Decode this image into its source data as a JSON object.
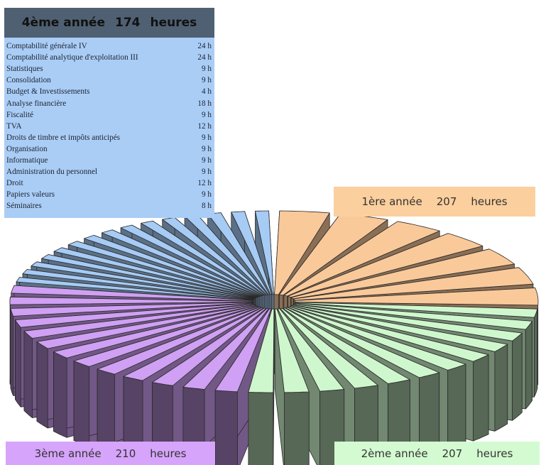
{
  "year4_panel": {
    "title": "4ème année",
    "total": "174",
    "unit": "heures",
    "courses": [
      {
        "name": "Comptabilité générale IV",
        "hours": "24 h"
      },
      {
        "name": "Comptabilité analytique d'exploitation III",
        "hours": "24 h"
      },
      {
        "name": "Statistiques",
        "hours": "9 h"
      },
      {
        "name": "Consolidation",
        "hours": "9 h"
      },
      {
        "name": "Budget & Investissements",
        "hours": "4 h"
      },
      {
        "name": "Analyse financière",
        "hours": "18 h"
      },
      {
        "name": "Fiscalité",
        "hours": "9 h"
      },
      {
        "name": "TVA",
        "hours": "12 h"
      },
      {
        "name": "Droits de timbre et impôts anticipés",
        "hours": "9 h"
      },
      {
        "name": "Organisation",
        "hours": "9 h"
      },
      {
        "name": "Informatique",
        "hours": "9 h"
      },
      {
        "name": "Administration du personnel",
        "hours": "9 h"
      },
      {
        "name": "Droit",
        "hours": "12 h"
      },
      {
        "name": "Papiers valeurs",
        "hours": "9 h"
      },
      {
        "name": "Séminaires",
        "hours": "8 h"
      }
    ]
  },
  "year1_label": {
    "year": "1ère  année",
    "hours": "207",
    "unit": "heures"
  },
  "year2_label": {
    "year": "2ème  année",
    "hours": "207",
    "unit": "heures"
  },
  "year3_label": {
    "year": "3ème  année",
    "hours": "210",
    "unit": "heures"
  },
  "chart_data": {
    "type": "pie",
    "style": "3d-exploded",
    "series": [
      {
        "name": "1ère année",
        "value": 207,
        "color": "#fac99a",
        "slices": 7
      },
      {
        "name": "2ème année",
        "value": 207,
        "color": "#cff7cd",
        "slices": 12
      },
      {
        "name": "3ème année",
        "value": 210,
        "color": "#cfa0f4",
        "slices": 13
      },
      {
        "name": "4ème année",
        "value": 174,
        "color": "#a6cbf5",
        "slices": 15
      }
    ]
  }
}
